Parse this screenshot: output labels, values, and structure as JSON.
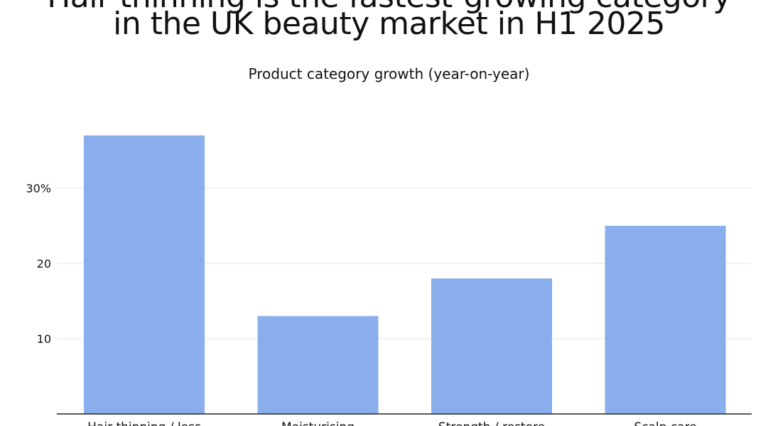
{
  "title": {
    "line1": "Hair thinning is the fastest-growing category",
    "line2": "in the UK beauty market in H1 2025"
  },
  "chart_data": {
    "type": "bar",
    "title": "Product category growth (year-on-year)",
    "categories": [
      "Hair thinning / loss",
      "Moisturising",
      "Strength / restore",
      "Scalp care"
    ],
    "values": [
      37,
      13,
      18,
      25
    ],
    "y_ticks": [
      {
        "value": 10,
        "label": "10"
      },
      {
        "value": 20,
        "label": "20"
      },
      {
        "value": 30,
        "label": "30%"
      }
    ],
    "ylim": [
      0,
      40
    ],
    "grid": true,
    "legend": "none",
    "bar_color": "#8aaeeb",
    "grid_color": "#e6e6e6",
    "axis_color": "#222222"
  }
}
